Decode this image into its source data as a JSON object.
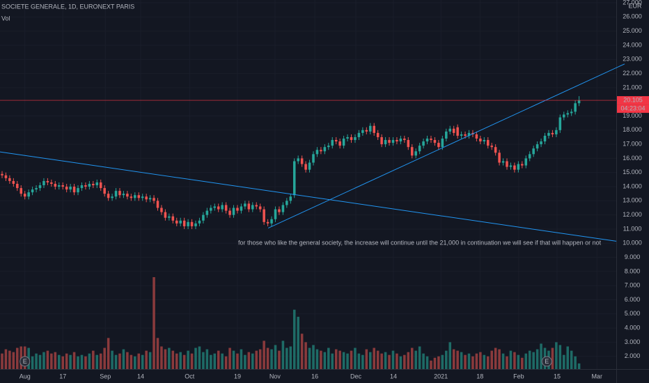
{
  "chart_data": {
    "type": "candlestick",
    "title": "SOCIETE GENERALE, 1D, EURONEXT PARIS",
    "volume_label": "Vol",
    "currency": "EUR",
    "up_color": "#26a69a",
    "down_color": "#ef5350",
    "volume_up_color": "#1e6b66",
    "volume_down_color": "#8a3a3c",
    "grid": true,
    "open": [
      14.9,
      14.8,
      14.6,
      14.4,
      14.2,
      13.9,
      13.5,
      13.3,
      13.6,
      13.8,
      13.9,
      14.1,
      14.4,
      14.3,
      14.2,
      14.0,
      14.1,
      14.0,
      13.8,
      14.0,
      13.6,
      13.9,
      14.1,
      14.0,
      14.2,
      14.1,
      14.3,
      13.9,
      13.5,
      13.2,
      13.3,
      13.7,
      13.4,
      13.5,
      13.3,
      13.2,
      13.4,
      13.2,
      13.3,
      13.1,
      13.2,
      13.0,
      12.5,
      12.2,
      11.8,
      11.9,
      11.6,
      11.4,
      11.6,
      11.2,
      11.5,
      11.2,
      11.4,
      11.6,
      12.0,
      12.3,
      12.5,
      12.6,
      12.4,
      12.7,
      12.3,
      12.0,
      12.5,
      12.3,
      12.6,
      12.8,
      12.4,
      12.7,
      12.6,
      12.4,
      11.5,
      11.4,
      11.7,
      12.4,
      12.2,
      12.7,
      13.0,
      13.4,
      15.8,
      16.0,
      15.6,
      15.2,
      15.7,
      16.3,
      16.6,
      16.5,
      16.8,
      16.9,
      17.3,
      17.2,
      16.9,
      17.4,
      17.5,
      17.3,
      17.5,
      17.8,
      18.0,
      17.9,
      18.3,
      17.8,
      17.5,
      17.0,
      17.3,
      17.1,
      17.3,
      17.2,
      17.4,
      17.3,
      16.8,
      16.2,
      16.5,
      16.9,
      17.2,
      17.4,
      17.3,
      17.1,
      16.8,
      17.4,
      17.9,
      18.1,
      18.2,
      17.6,
      17.7,
      17.6,
      17.8,
      17.7,
      17.4,
      17.2,
      17.3,
      16.9,
      16.8,
      16.4,
      15.7,
      15.8,
      15.4,
      15.5,
      15.2,
      15.6,
      15.5,
      16.0,
      16.3,
      16.7,
      17.0,
      17.2,
      17.6,
      17.8,
      17.7,
      18.0,
      18.9,
      19.1,
      19.2,
      19.3,
      19.9
    ],
    "high": [
      15.1,
      15.0,
      14.8,
      14.6,
      14.4,
      14.1,
      13.7,
      13.8,
      14.0,
      14.1,
      14.3,
      14.6,
      14.6,
      14.5,
      14.4,
      14.3,
      14.3,
      14.2,
      14.2,
      14.2,
      14.1,
      14.3,
      14.3,
      14.4,
      14.4,
      14.5,
      14.5,
      14.1,
      13.7,
      13.5,
      13.9,
      13.9,
      13.7,
      13.7,
      13.5,
      13.6,
      13.6,
      13.5,
      13.5,
      13.4,
      13.4,
      13.2,
      12.7,
      12.4,
      12.1,
      12.1,
      11.8,
      11.8,
      11.8,
      11.7,
      11.7,
      11.6,
      11.8,
      12.2,
      12.5,
      12.7,
      12.8,
      12.8,
      12.9,
      12.9,
      12.5,
      12.7,
      12.7,
      12.8,
      13.0,
      13.0,
      12.9,
      12.9,
      12.8,
      12.6,
      11.7,
      11.9,
      12.6,
      12.6,
      12.9,
      13.2,
      13.5,
      16.0,
      16.2,
      16.2,
      15.8,
      15.9,
      16.5,
      16.8,
      16.8,
      17.0,
      17.1,
      17.5,
      17.5,
      17.4,
      17.6,
      17.7,
      17.7,
      17.7,
      18.0,
      18.2,
      18.2,
      18.5,
      18.5,
      18.0,
      17.7,
      17.5,
      17.5,
      17.5,
      17.5,
      17.6,
      17.6,
      17.5,
      17.0,
      16.7,
      17.1,
      17.4,
      17.6,
      17.6,
      17.5,
      17.3,
      17.6,
      18.1,
      18.3,
      18.3,
      18.4,
      17.9,
      17.9,
      18.0,
      18.0,
      17.9,
      17.6,
      17.5,
      17.5,
      17.1,
      17.0,
      16.6,
      16.0,
      16.0,
      15.7,
      15.7,
      15.8,
      15.8,
      16.2,
      16.5,
      16.9,
      17.2,
      17.4,
      17.8,
      18.0,
      18.0,
      18.2,
      19.1,
      19.3,
      19.4,
      19.5,
      20.1,
      20.4
    ],
    "low": [
      14.6,
      14.4,
      14.2,
      14.0,
      13.7,
      13.3,
      13.1,
      13.1,
      13.4,
      13.6,
      13.7,
      13.9,
      14.1,
      14.0,
      13.8,
      13.8,
      13.8,
      13.6,
      13.6,
      13.4,
      13.4,
      13.7,
      13.8,
      13.8,
      13.9,
      13.9,
      13.7,
      13.3,
      13.0,
      13.0,
      13.1,
      13.2,
      13.2,
      13.1,
      13.0,
      13.0,
      13.0,
      13.0,
      12.9,
      12.9,
      12.8,
      12.3,
      12.0,
      11.6,
      11.6,
      11.4,
      11.2,
      11.2,
      11.0,
      11.0,
      11.0,
      11.0,
      11.2,
      11.4,
      11.8,
      12.1,
      12.3,
      12.2,
      12.2,
      12.1,
      11.8,
      11.8,
      12.1,
      12.1,
      12.4,
      12.2,
      12.2,
      12.4,
      12.2,
      11.3,
      11.2,
      11.2,
      11.5,
      12.0,
      12.0,
      12.5,
      12.8,
      13.2,
      15.6,
      15.4,
      15.0,
      15.0,
      15.5,
      16.1,
      16.3,
      16.3,
      16.6,
      16.7,
      17.0,
      16.7,
      16.7,
      17.2,
      17.1,
      17.1,
      17.3,
      17.6,
      17.7,
      17.7,
      17.6,
      17.3,
      16.8,
      16.8,
      16.9,
      16.9,
      17.0,
      17.0,
      17.1,
      16.6,
      16.0,
      16.0,
      16.3,
      16.7,
      17.0,
      17.1,
      16.9,
      16.6,
      16.6,
      17.2,
      17.7,
      17.6,
      17.4,
      17.4,
      17.4,
      17.4,
      17.5,
      17.2,
      17.0,
      17.0,
      16.7,
      16.6,
      16.2,
      15.5,
      15.5,
      15.2,
      15.2,
      15.0,
      15.0,
      15.3,
      15.3,
      15.8,
      16.1,
      16.5,
      16.8,
      17.0,
      17.4,
      17.5,
      17.5,
      17.8,
      18.7,
      18.9,
      19.0,
      19.1,
      19.7
    ],
    "close": [
      14.8,
      14.6,
      14.4,
      14.2,
      13.9,
      13.5,
      13.3,
      13.6,
      13.8,
      13.9,
      14.1,
      14.4,
      14.3,
      14.2,
      14.0,
      14.1,
      14.0,
      13.8,
      14.0,
      13.6,
      13.9,
      14.1,
      14.0,
      14.2,
      14.1,
      14.3,
      13.9,
      13.5,
      13.2,
      13.3,
      13.7,
      13.4,
      13.5,
      13.3,
      13.2,
      13.4,
      13.2,
      13.3,
      13.1,
      13.2,
      13.0,
      12.5,
      12.2,
      11.8,
      11.9,
      11.6,
      11.4,
      11.6,
      11.2,
      11.5,
      11.2,
      11.4,
      11.6,
      12.0,
      12.3,
      12.5,
      12.6,
      12.4,
      12.7,
      12.3,
      12.0,
      12.5,
      12.3,
      12.6,
      12.8,
      12.4,
      12.7,
      12.6,
      12.4,
      11.5,
      11.4,
      11.7,
      12.4,
      12.2,
      12.7,
      13.0,
      13.3,
      15.8,
      16.0,
      15.6,
      15.2,
      15.7,
      16.3,
      16.6,
      16.5,
      16.8,
      16.9,
      17.3,
      17.2,
      16.9,
      17.4,
      17.5,
      17.3,
      17.5,
      17.8,
      18.0,
      17.9,
      18.3,
      17.8,
      17.5,
      17.0,
      17.3,
      17.1,
      17.3,
      17.2,
      17.4,
      17.3,
      16.8,
      16.2,
      16.5,
      16.9,
      17.2,
      17.4,
      17.3,
      17.1,
      16.8,
      17.4,
      17.9,
      18.1,
      17.8,
      17.6,
      17.7,
      17.6,
      17.8,
      17.7,
      17.4,
      17.2,
      17.3,
      16.9,
      16.8,
      16.4,
      15.7,
      15.8,
      15.4,
      15.5,
      15.2,
      15.6,
      15.5,
      16.0,
      16.3,
      16.7,
      17.0,
      17.2,
      17.6,
      17.8,
      17.7,
      18.0,
      18.9,
      19.1,
      19.2,
      19.3,
      19.9,
      20.1
    ],
    "volume": [
      2.2,
      2.5,
      2.4,
      2.3,
      2.6,
      2.7,
      2.7,
      2.6,
      2.0,
      2.2,
      2.1,
      2.3,
      2.4,
      2.2,
      2.3,
      2.1,
      2.0,
      2.2,
      2.1,
      2.3,
      2.0,
      2.1,
      2.0,
      2.2,
      2.4,
      2.1,
      2.2,
      2.6,
      3.3,
      2.4,
      2.1,
      2.2,
      2.5,
      2.3,
      2.1,
      2.0,
      2.2,
      2.1,
      2.4,
      2.3,
      7.6,
      3.3,
      2.7,
      2.5,
      2.6,
      2.4,
      2.2,
      2.3,
      2.1,
      2.4,
      2.2,
      2.6,
      2.7,
      2.3,
      2.5,
      2.1,
      2.2,
      2.4,
      2.2,
      2.0,
      2.6,
      2.4,
      2.2,
      2.5,
      2.1,
      2.3,
      2.2,
      2.4,
      2.5,
      3.1,
      2.6,
      2.5,
      2.8,
      2.4,
      3.1,
      2.6,
      2.7,
      5.3,
      4.8,
      3.6,
      3.0,
      2.6,
      2.8,
      2.5,
      2.4,
      2.3,
      2.6,
      2.2,
      2.5,
      2.4,
      2.3,
      2.2,
      2.4,
      2.6,
      2.2,
      2.1,
      2.5,
      2.3,
      2.6,
      2.4,
      2.2,
      2.3,
      2.1,
      2.4,
      2.2,
      2.0,
      2.1,
      2.3,
      2.6,
      2.4,
      2.7,
      2.2,
      2.0,
      1.7,
      1.9,
      2.0,
      2.1,
      2.4,
      3.0,
      2.5,
      2.4,
      2.3,
      2.1,
      2.2,
      2.0,
      2.2,
      2.3,
      2.1,
      2.0,
      2.4,
      2.6,
      2.5,
      2.2,
      2.0,
      2.4,
      2.3,
      2.1,
      1.9,
      2.2,
      2.4,
      2.3,
      2.5,
      2.9,
      2.6,
      2.4,
      2.6,
      3.0,
      2.8,
      2.1,
      2.7,
      2.4,
      2.0,
      1.5
    ],
    "ylim": [
      1.1,
      27.2
    ],
    "yticks": [
      {
        "value": 2,
        "label": "2.000"
      },
      {
        "value": 3,
        "label": "3.000"
      },
      {
        "value": 4,
        "label": "4.000"
      },
      {
        "value": 5,
        "label": "5.000"
      },
      {
        "value": 6,
        "label": "6.000"
      },
      {
        "value": 7,
        "label": "7.000"
      },
      {
        "value": 8,
        "label": "8.000"
      },
      {
        "value": 9,
        "label": "9.000"
      },
      {
        "value": 10,
        "label": "10.000"
      },
      {
        "value": 11,
        "label": "11.000"
      },
      {
        "value": 12,
        "label": "12.000"
      },
      {
        "value": 13,
        "label": "13.000"
      },
      {
        "value": 14,
        "label": "14.000"
      },
      {
        "value": 15,
        "label": "15.000"
      },
      {
        "value": 16,
        "label": "16.000"
      },
      {
        "value": 17,
        "label": "17.000"
      },
      {
        "value": 18,
        "label": "18.000"
      },
      {
        "value": 19,
        "label": "19.000"
      },
      {
        "value": 21,
        "label": "21.000"
      },
      {
        "value": 22,
        "label": "22.000"
      },
      {
        "value": 23,
        "label": "23.000"
      },
      {
        "value": 24,
        "label": "24.000"
      },
      {
        "value": 25,
        "label": "25.000"
      },
      {
        "value": 26,
        "label": "26.000"
      },
      {
        "value": 27,
        "label": "27.000"
      }
    ],
    "xlim": [
      -0.55,
      161.8
    ],
    "xticks": [
      {
        "value": 6,
        "label": "Aug"
      },
      {
        "value": 16,
        "label": "17"
      },
      {
        "value": 27.2,
        "label": "Sep"
      },
      {
        "value": 36.5,
        "label": "14"
      },
      {
        "value": 49.4,
        "label": "Oct"
      },
      {
        "value": 62,
        "label": "19"
      },
      {
        "value": 71.9,
        "label": "Nov"
      },
      {
        "value": 82.4,
        "label": "16"
      },
      {
        "value": 93.2,
        "label": "Dec"
      },
      {
        "value": 103.1,
        "label": "14"
      },
      {
        "value": 115.6,
        "label": "2021"
      },
      {
        "value": 125.9,
        "label": "18"
      },
      {
        "value": 136.1,
        "label": "Feb"
      },
      {
        "value": 146.2,
        "label": "15"
      },
      {
        "value": 156.7,
        "label": "Mar"
      }
    ],
    "last_price": 20.105,
    "last_price_color": "#f23645",
    "countdown": "04:23:04",
    "trendlines": [
      {
        "color": "#2196f3",
        "x": [
          -0.55,
          161.8
        ],
        "y": [
          16.46,
          10.14
        ]
      },
      {
        "color": "#2196f3",
        "x": [
          70.1,
          164
        ],
        "y": [
          11.07,
          22.68
        ]
      }
    ],
    "annotation": {
      "text": "for those who like the general society, the increase will continue until the 21,000 in continuation we will see if that will happen or not",
      "x": 110,
      "y": 10.0,
      "color": "#2196f3"
    },
    "events": [
      {
        "x": 6,
        "label": "E"
      },
      {
        "x": 143.5,
        "label": "E"
      }
    ]
  }
}
